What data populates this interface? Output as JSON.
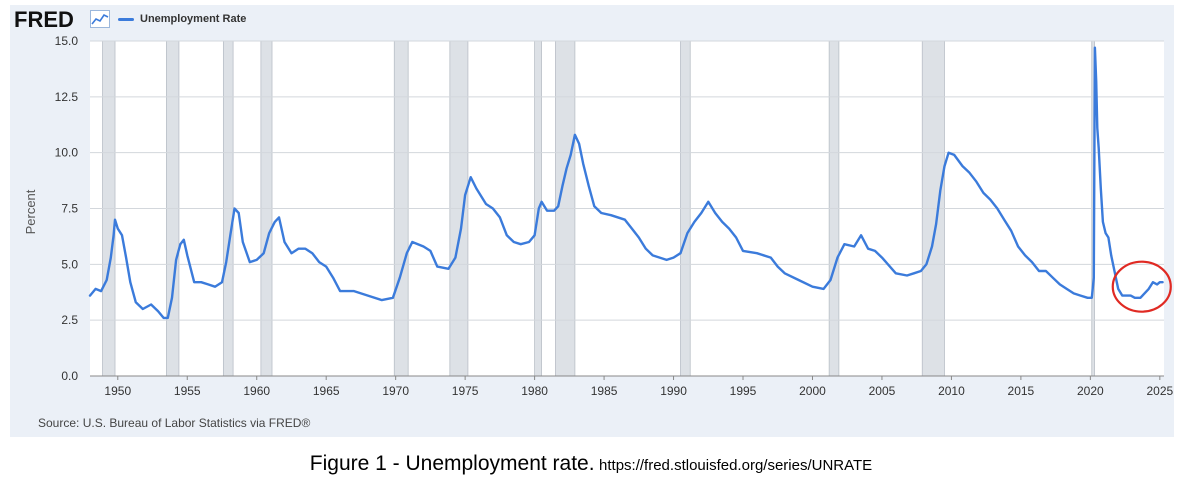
{
  "logo_text": "FRED",
  "chart_icon": "chart-line-icon",
  "source": "Source: U.S. Bureau of Labor Statistics via FRED®",
  "caption": {
    "main": "Figure 1 - Unemployment rate.",
    "url": "https://fred.stlouisfed.org/series/UNRATE"
  },
  "colors": {
    "line": "#3b7bdb",
    "recession": "#dde1e6",
    "plot_bg": "#ffffff",
    "panel_bg": "#ebf0f7",
    "annotation": "#e02a23"
  },
  "chart_data": {
    "type": "line",
    "title": "",
    "xlabel": "",
    "ylabel": "Percent",
    "xlim": [
      1948.0,
      2025.3
    ],
    "ylim": [
      0,
      15
    ],
    "yticks": [
      "0.0",
      "2.5",
      "5.0",
      "7.5",
      "10.0",
      "12.5",
      "15.0"
    ],
    "xticks": [
      "1950",
      "1955",
      "1960",
      "1965",
      "1970",
      "1975",
      "1980",
      "1985",
      "1990",
      "1995",
      "2000",
      "2005",
      "2010",
      "2015",
      "2020",
      "2025"
    ],
    "grid": "horizontal",
    "legend": "top-left",
    "series": [
      {
        "name": "Unemployment Rate",
        "x": [
          1948.0,
          1948.4,
          1948.8,
          1949.2,
          1949.5,
          1949.7,
          1949.8,
          1950.0,
          1950.3,
          1950.6,
          1950.9,
          1951.3,
          1951.8,
          1952.4,
          1952.9,
          1953.3,
          1953.6,
          1953.9,
          1954.2,
          1954.5,
          1954.75,
          1955.0,
          1955.5,
          1956.0,
          1956.5,
          1957.0,
          1957.5,
          1957.8,
          1958.1,
          1958.4,
          1958.7,
          1959.0,
          1959.5,
          1960.0,
          1960.5,
          1960.9,
          1961.3,
          1961.6,
          1962.0,
          1962.5,
          1963.0,
          1963.5,
          1964.0,
          1964.5,
          1965.0,
          1965.5,
          1966.0,
          1967.0,
          1968.0,
          1969.0,
          1969.8,
          1970.3,
          1970.8,
          1971.2,
          1972.0,
          1972.5,
          1973.0,
          1973.8,
          1974.3,
          1974.7,
          1975.0,
          1975.4,
          1975.8,
          1976.5,
          1977.0,
          1977.5,
          1978.0,
          1978.5,
          1979.0,
          1979.6,
          1980.0,
          1980.3,
          1980.5,
          1980.9,
          1981.4,
          1981.7,
          1982.0,
          1982.3,
          1982.6,
          1982.9,
          1983.2,
          1983.5,
          1983.9,
          1984.3,
          1984.8,
          1985.5,
          1986.5,
          1987.0,
          1987.5,
          1988.0,
          1988.5,
          1989.0,
          1989.5,
          1990.0,
          1990.5,
          1991.0,
          1991.5,
          1992.0,
          1992.5,
          1993.0,
          1993.5,
          1994.0,
          1994.5,
          1995.0,
          1996.0,
          1997.0,
          1997.5,
          1998.0,
          1999.0,
          2000.0,
          2000.8,
          2001.3,
          2001.8,
          2002.3,
          2003.0,
          2003.5,
          2004.0,
          2004.5,
          2005.0,
          2006.0,
          2006.8,
          2007.3,
          2007.8,
          2008.2,
          2008.6,
          2008.9,
          2009.2,
          2009.5,
          2009.8,
          2010.2,
          2010.8,
          2011.3,
          2011.8,
          2012.3,
          2012.8,
          2013.3,
          2013.8,
          2014.3,
          2014.8,
          2015.3,
          2015.8,
          2016.3,
          2016.8,
          2017.3,
          2017.8,
          2018.3,
          2018.8,
          2019.3,
          2019.8,
          2020.1,
          2020.25,
          2020.33,
          2020.42,
          2020.5,
          2020.6,
          2020.75,
          2020.9,
          2021.1,
          2021.3,
          2021.5,
          2021.7,
          2021.9,
          2022.0,
          2022.3,
          2022.6,
          2022.9,
          2023.2,
          2023.6,
          2023.9,
          2024.2,
          2024.5,
          2024.8,
          2025.0,
          2025.2
        ],
        "y": [
          3.6,
          3.9,
          3.8,
          4.3,
          5.3,
          6.3,
          7.0,
          6.6,
          6.3,
          5.3,
          4.2,
          3.3,
          3.0,
          3.2,
          2.9,
          2.6,
          2.6,
          3.5,
          5.2,
          5.9,
          6.1,
          5.4,
          4.2,
          4.2,
          4.1,
          4.0,
          4.2,
          5.1,
          6.3,
          7.5,
          7.3,
          6.0,
          5.1,
          5.2,
          5.5,
          6.4,
          6.9,
          7.1,
          6.0,
          5.5,
          5.7,
          5.7,
          5.5,
          5.1,
          4.9,
          4.4,
          3.8,
          3.8,
          3.6,
          3.4,
          3.5,
          4.4,
          5.5,
          6.0,
          5.8,
          5.6,
          4.9,
          4.8,
          5.3,
          6.6,
          8.1,
          8.9,
          8.4,
          7.7,
          7.5,
          7.1,
          6.3,
          6.0,
          5.9,
          6.0,
          6.3,
          7.5,
          7.8,
          7.4,
          7.4,
          7.6,
          8.5,
          9.3,
          9.9,
          10.8,
          10.4,
          9.5,
          8.5,
          7.6,
          7.3,
          7.2,
          7.0,
          6.6,
          6.2,
          5.7,
          5.4,
          5.3,
          5.2,
          5.3,
          5.5,
          6.4,
          6.9,
          7.3,
          7.8,
          7.3,
          6.9,
          6.6,
          6.2,
          5.6,
          5.5,
          5.3,
          4.9,
          4.6,
          4.3,
          4.0,
          3.9,
          4.3,
          5.3,
          5.9,
          5.8,
          6.3,
          5.7,
          5.6,
          5.3,
          4.6,
          4.5,
          4.6,
          4.7,
          5.0,
          5.8,
          6.8,
          8.3,
          9.4,
          10.0,
          9.9,
          9.4,
          9.1,
          8.7,
          8.2,
          7.9,
          7.5,
          7.0,
          6.5,
          5.8,
          5.4,
          5.1,
          4.7,
          4.7,
          4.4,
          4.1,
          3.9,
          3.7,
          3.6,
          3.5,
          3.5,
          4.4,
          14.7,
          13.2,
          11.1,
          10.2,
          8.4,
          6.9,
          6.4,
          6.2,
          5.4,
          4.8,
          4.2,
          3.9,
          3.6,
          3.6,
          3.6,
          3.5,
          3.5,
          3.7,
          3.9,
          4.2,
          4.1,
          4.2,
          4.2
        ]
      }
    ],
    "recessions": [
      [
        1948.9,
        1949.8
      ],
      [
        1953.5,
        1954.4
      ],
      [
        1957.6,
        1958.3
      ],
      [
        1960.3,
        1961.1
      ],
      [
        1969.9,
        1970.9
      ],
      [
        1973.9,
        1975.2
      ],
      [
        1980.0,
        1980.5
      ],
      [
        1981.5,
        1982.9
      ],
      [
        1990.5,
        1991.2
      ],
      [
        2001.2,
        2001.9
      ],
      [
        2007.9,
        2009.5
      ],
      [
        2020.1,
        2020.3
      ]
    ],
    "annotation": {
      "shape": "circle",
      "x": 2023.7,
      "y": 4.0
    }
  }
}
